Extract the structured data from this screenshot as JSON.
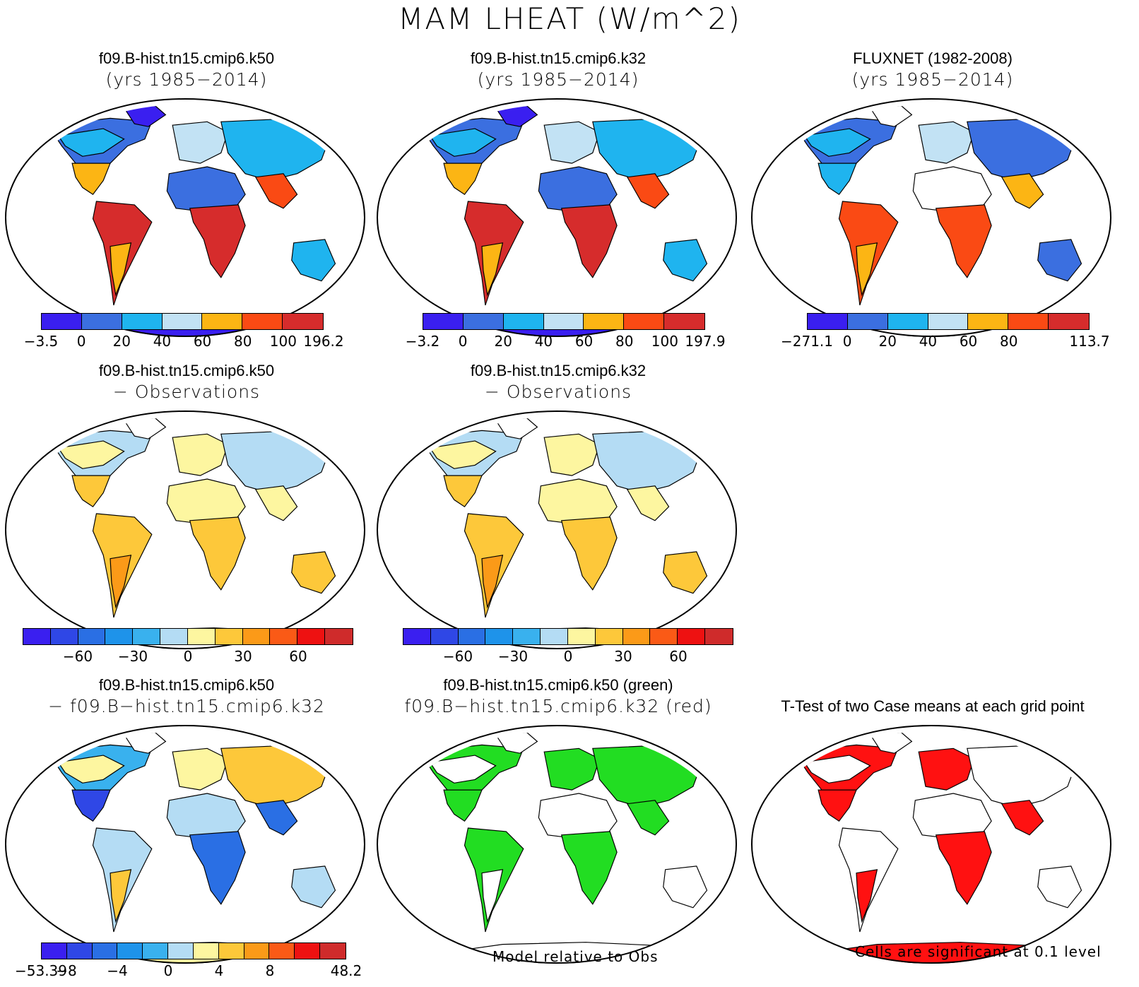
{
  "title": "MAM LHEAT (W/m^2)",
  "panels": [
    {
      "id": "p1",
      "title1": "f09.B-hist.tn15.cmip6.k50",
      "title2": "(yrs 1985−2014)",
      "style": "abs"
    },
    {
      "id": "p2",
      "title1": "f09.B-hist.tn15.cmip6.k32",
      "title2": "(yrs 1985−2014)",
      "style": "abs"
    },
    {
      "id": "p3",
      "title1": "FLUXNET (1982-2008)",
      "title2": "(yrs 1985−2014)",
      "style": "obs"
    },
    {
      "id": "p4",
      "title1": "f09.B-hist.tn15.cmip6.k50",
      "title2": "− Observations",
      "style": "diff"
    },
    {
      "id": "p5",
      "title1": "f09.B-hist.tn15.cmip6.k32",
      "title2": "− Observations",
      "style": "diff"
    },
    {
      "id": "p6",
      "title1": "f09.B-hist.tn15.cmip6.k50",
      "title2": "− f09.B−hist.tn15.cmip6.k32",
      "style": "diff2"
    },
    {
      "id": "p7",
      "title1": "f09.B-hist.tn15.cmip6.k50 (green)",
      "title2": "f09.B−hist.tn15.cmip6.k32 (red)",
      "style": "greenred"
    },
    {
      "id": "p8",
      "title1": "T-Test of two Case means at each grid point",
      "title2": "",
      "style": "ttest"
    }
  ],
  "colorbars": {
    "abs_colors": [
      "#3a1ff0",
      "#3b6fe0",
      "#1fb4ef",
      "#c2e2f4",
      "#fcb514",
      "#fa4a14",
      "#d62c2c"
    ],
    "p1_ticks": [
      "−3.5",
      "0",
      "20",
      "40",
      "60",
      "80",
      "100",
      "196.2"
    ],
    "p2_ticks": [
      "−3.2",
      "0",
      "20",
      "40",
      "60",
      "80",
      "100",
      "197.9"
    ],
    "p3_ticks": [
      "−271.1",
      "0",
      "20",
      "40",
      "60",
      "80",
      "",
      "113.7"
    ],
    "diff_colors": [
      "#3a1ff0",
      "#2f47e6",
      "#2a6fe4",
      "#1e93ea",
      "#39b1ee",
      "#b4dcf4",
      "#fdf6a0",
      "#fdc83a",
      "#fb9a18",
      "#fa5a16",
      "#ee1111",
      "#cf2b2b"
    ],
    "diff_ticks": [
      "",
      "",
      "−60",
      "",
      "−30",
      "",
      "0",
      "",
      "30",
      "",
      "60",
      "",
      ""
    ],
    "diff2_ticks": [
      "−53.39",
      "−8",
      "",
      "−4",
      "",
      "0",
      "",
      "4",
      "",
      "8",
      "",
      "",
      "48.2"
    ]
  },
  "notes": {
    "model_rel": "Model relative to Obs",
    "significance": "Cells are significant at 0.1 level"
  }
}
